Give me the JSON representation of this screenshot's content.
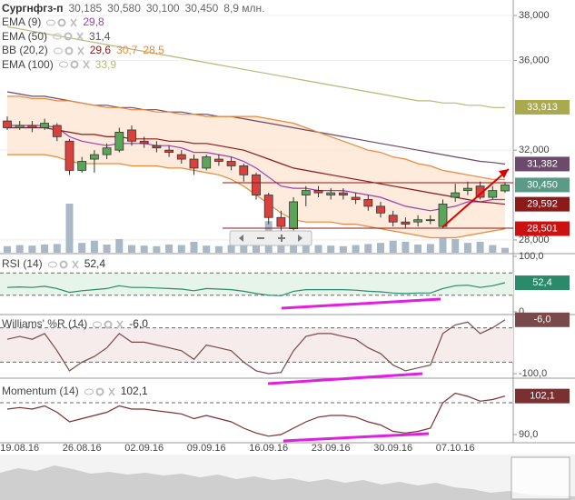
{
  "chart_data": {
    "type": "candlestick",
    "title": "Сургнфгз-п",
    "info": [
      "30,185",
      "30,580",
      "30,100",
      "30,450",
      "8,9 млн."
    ],
    "categories": [
      null,
      "19.08.16",
      null,
      null,
      null,
      null,
      "26.08.16",
      null,
      null,
      null,
      null,
      "02.09.16",
      null,
      null,
      null,
      null,
      "09.09.16",
      null,
      null,
      null,
      null,
      "16.09.16",
      null,
      null,
      null,
      null,
      "23.09.16",
      null,
      null,
      null,
      null,
      "30.09.16",
      null,
      null,
      null,
      null,
      "07.10.16",
      null,
      null,
      null,
      null
    ],
    "open": [
      33.3,
      33.0,
      33.1,
      33.0,
      33.1,
      32.4,
      31.1,
      31.6,
      31.8,
      32.0,
      32.9,
      32.4,
      32.2,
      32.0,
      31.8,
      31.6,
      31.2,
      31.6,
      31.5,
      31.3,
      30.9,
      30.0,
      29.0,
      28.5,
      30.0,
      30.2,
      30.0,
      30.1,
      29.9,
      29.8,
      29.5,
      29.1,
      28.8,
      28.8,
      28.9,
      28.6,
      29.9,
      30.2,
      30.4,
      29.9,
      30.185
    ],
    "high": [
      33.5,
      33.3,
      33.3,
      33.4,
      33.2,
      32.5,
      31.7,
      32.0,
      32.3,
      33.0,
      33.1,
      32.6,
      32.4,
      32.2,
      32.0,
      31.8,
      31.8,
      31.8,
      31.7,
      31.4,
      31.0,
      30.1,
      29.3,
      29.9,
      30.4,
      30.4,
      30.3,
      30.3,
      30.1,
      30.0,
      29.7,
      29.3,
      29.0,
      29.1,
      29.1,
      29.8,
      30.5,
      30.6,
      30.6,
      30.4,
      30.58
    ],
    "low": [
      32.9,
      32.9,
      32.8,
      32.9,
      32.4,
      30.9,
      31.0,
      31.0,
      31.6,
      31.9,
      32.2,
      32.1,
      31.9,
      31.7,
      31.4,
      30.9,
      31.1,
      31.3,
      31.1,
      30.6,
      29.8,
      28.7,
      28.3,
      28.4,
      29.5,
      29.9,
      29.8,
      29.8,
      29.6,
      29.3,
      29.0,
      28.6,
      28.5,
      28.6,
      28.7,
      28.5,
      29.7,
      30.0,
      29.8,
      29.8,
      30.1
    ],
    "close": [
      33.0,
      33.1,
      33.0,
      33.2,
      32.6,
      31.1,
      31.5,
      31.8,
      32.1,
      32.8,
      32.4,
      32.3,
      32.1,
      31.9,
      31.6,
      31.2,
      31.7,
      31.5,
      31.3,
      30.9,
      30.0,
      29.0,
      28.6,
      29.7,
      30.2,
      30.1,
      30.1,
      30.0,
      29.8,
      29.5,
      29.2,
      28.8,
      28.7,
      28.9,
      28.9,
      29.6,
      30.1,
      30.3,
      29.9,
      30.2,
      30.45
    ],
    "volume": [
      12,
      14,
      13,
      15,
      16,
      90,
      18,
      22,
      15,
      25,
      14,
      13,
      12,
      15,
      14,
      20,
      13,
      12,
      14,
      18,
      25,
      58,
      35,
      20,
      15,
      14,
      13,
      12,
      14,
      16,
      18,
      22,
      20,
      15,
      16,
      28,
      25,
      18,
      20,
      14,
      8.9
    ],
    "up_color": "#5aa55a",
    "down_color": "#d9413c",
    "volume_color": "#a9b8c6",
    "ylim": [
      27.43,
      38.69
    ],
    "yticks": [
      {
        "value": 38,
        "label": "38,000"
      },
      {
        "value": 36,
        "label": "36,000"
      },
      {
        "value": 32,
        "label": "32,000"
      },
      {
        "value": 28,
        "label": "28,000"
      }
    ],
    "grid": true,
    "indicators": [
      {
        "name": "EMA (9)",
        "labels": [
          "29,8"
        ],
        "lines": [
          {
            "color": "#9b3fb5",
            "values": [
              33.1,
              33.1,
              33.1,
              33.1,
              33.0,
              32.6,
              32.4,
              32.3,
              32.2,
              32.3,
              32.3,
              32.3,
              32.2,
              32.2,
              32.1,
              31.9,
              31.9,
              31.8,
              31.7,
              31.5,
              31.2,
              30.8,
              30.4,
              30.3,
              30.3,
              30.2,
              30.2,
              30.2,
              30.1,
              30.0,
              29.9,
              29.7,
              29.5,
              29.4,
              29.3,
              29.4,
              29.5,
              29.7,
              29.7,
              29.8,
              29.8
            ]
          }
        ]
      },
      {
        "name": "EMA (50)",
        "labels": [
          "31,4"
        ],
        "lines": [
          {
            "color": "#6b4a6b",
            "values": [
              34.6,
              34.5,
              34.4,
              34.4,
              34.3,
              34.2,
              34.1,
              34.0,
              34.0,
              33.9,
              33.9,
              33.8,
              33.8,
              33.7,
              33.7,
              33.6,
              33.6,
              33.5,
              33.5,
              33.4,
              33.3,
              33.2,
              33.1,
              33.0,
              32.9,
              32.8,
              32.7,
              32.6,
              32.5,
              32.4,
              32.3,
              32.2,
              32.1,
              32.0,
              31.9,
              31.8,
              31.7,
              31.6,
              31.5,
              31.45,
              31.38
            ]
          }
        ]
      },
      {
        "name": "BB (20,2)",
        "labels": [
          "29,6",
          "30,7",
          "28,5"
        ],
        "band_color": "#fde3cd",
        "lines": [
          {
            "color": "#8b1a1a",
            "values": [
              33.0,
              33.0,
              33.0,
              33.0,
              32.9,
              32.8,
              32.7,
              32.7,
              32.6,
              32.6,
              32.5,
              32.5,
              32.5,
              32.4,
              32.4,
              32.3,
              32.3,
              32.2,
              32.1,
              32.0,
              31.8,
              31.6,
              31.4,
              31.2,
              31.1,
              31.0,
              30.9,
              30.8,
              30.7,
              30.6,
              30.5,
              30.4,
              30.3,
              30.2,
              30.1,
              30.0,
              29.9,
              29.8,
              29.7,
              29.65,
              29.59
            ]
          },
          {
            "color": "#e8893a",
            "values": [
              34.4,
              34.4,
              34.3,
              34.3,
              34.2,
              34.2,
              34.1,
              34.0,
              33.9,
              33.9,
              33.8,
              33.8,
              33.7,
              33.7,
              33.6,
              33.6,
              33.5,
              33.5,
              33.5,
              33.5,
              33.5,
              33.4,
              33.3,
              33.2,
              33.0,
              32.8,
              32.6,
              32.4,
              32.2,
              32.0,
              31.9,
              31.7,
              31.6,
              31.4,
              31.3,
              31.1,
              31.0,
              30.9,
              30.8,
              30.7,
              30.7
            ]
          },
          {
            "color": "#e8893a",
            "values": [
              31.8,
              31.8,
              31.8,
              31.8,
              31.7,
              31.5,
              31.4,
              31.4,
              31.4,
              31.4,
              31.3,
              31.3,
              31.3,
              31.2,
              31.2,
              31.1,
              31.0,
              30.9,
              30.7,
              30.4,
              30.0,
              29.6,
              29.2,
              28.9,
              28.8,
              28.8,
              28.8,
              28.7,
              28.7,
              28.6,
              28.5,
              28.4,
              28.3,
              28.2,
              28.1,
              28.1,
              28.1,
              28.2,
              28.3,
              28.4,
              28.5
            ]
          }
        ]
      },
      {
        "name": "EMA (100)",
        "labels": [
          "33,9"
        ],
        "lines": [
          {
            "color": "#b8b878",
            "values": [
              37.5,
              37.4,
              37.3,
              37.2,
              37.1,
              37.0,
              36.9,
              36.8,
              36.7,
              36.6,
              36.5,
              36.4,
              36.3,
              36.2,
              36.1,
              36.0,
              35.9,
              35.8,
              35.7,
              35.6,
              35.5,
              35.4,
              35.3,
              35.2,
              35.1,
              35.0,
              34.9,
              34.8,
              34.7,
              34.6,
              34.5,
              34.4,
              34.3,
              34.2,
              34.2,
              34.1,
              34.1,
              34.0,
              34.0,
              33.9,
              33.9
            ]
          }
        ]
      }
    ],
    "price_tags": [
      {
        "value": 33.913,
        "label": "33,913",
        "color": "#a9a94e"
      },
      {
        "value": 31.382,
        "label": "31,382",
        "color": "#6b4a6b"
      },
      {
        "value": 30.45,
        "label": "30,450",
        "color": "#5a9a86"
      },
      {
        "value": 29.592,
        "label": "29,592",
        "color": "#8b1a1a"
      },
      {
        "value": 28.501,
        "label": "28,501",
        "color": "#cc1111"
      }
    ],
    "panels": [
      {
        "name": "RSI (14)",
        "label": "52,4",
        "color": "#2a8a6a",
        "band_color": "#e6f4ea",
        "ylim": [
          0,
          100
        ],
        "yticks": [
          {
            "value": 100,
            "label": "100,0"
          },
          0
        ],
        "levels": [
          70,
          30
        ],
        "values": [
          44,
          45,
          44,
          46,
          42,
          35,
          38,
          40,
          42,
          47,
          44,
          44,
          43,
          42,
          41,
          38,
          42,
          41,
          40,
          37,
          33,
          30,
          29,
          37,
          40,
          40,
          40,
          40,
          39,
          37,
          36,
          34,
          33,
          34,
          34,
          42,
          47,
          48,
          44,
          47,
          52.4
        ]
      },
      {
        "name": "Williams' %R (14)",
        "label": "-6,0",
        "color": "#7a4a4a",
        "band_color": "#f6ecec",
        "ylim": [
          -100,
          0
        ],
        "yticks": [
          {
            "value": -100,
            "label": "-100,0"
          }
        ],
        "levels": [
          -20,
          -80
        ],
        "values": [
          -40,
          -35,
          -40,
          -30,
          -60,
          -95,
          -80,
          -70,
          -55,
          -30,
          -45,
          -45,
          -50,
          -55,
          -60,
          -75,
          -50,
          -55,
          -60,
          -80,
          -95,
          -100,
          -98,
          -60,
          -35,
          -30,
          -30,
          -35,
          -40,
          -55,
          -65,
          -85,
          -95,
          -90,
          -85,
          -30,
          -15,
          -10,
          -30,
          -20,
          -6
        ]
      },
      {
        "name": "Momentum (14)",
        "label": "102,1",
        "color": "#7a3030",
        "band_color": "#ffffff",
        "ylim": [
          88,
          106
        ],
        "yticks": [
          {
            "value": 90,
            "label": "90,0"
          }
        ],
        "levels": [
          100
        ],
        "values": [
          98,
          98.5,
          98,
          99,
          97,
          94,
          95,
          96,
          97,
          99,
          98,
          98,
          97.5,
          97,
          96.5,
          95,
          96,
          95,
          94,
          92,
          90.5,
          89.5,
          90,
          92,
          94,
          95.5,
          96,
          96,
          95.5,
          94,
          93,
          91,
          90.5,
          91,
          92,
          100,
          103,
          102,
          100.5,
          101,
          102.1
        ]
      }
    ]
  }
}
